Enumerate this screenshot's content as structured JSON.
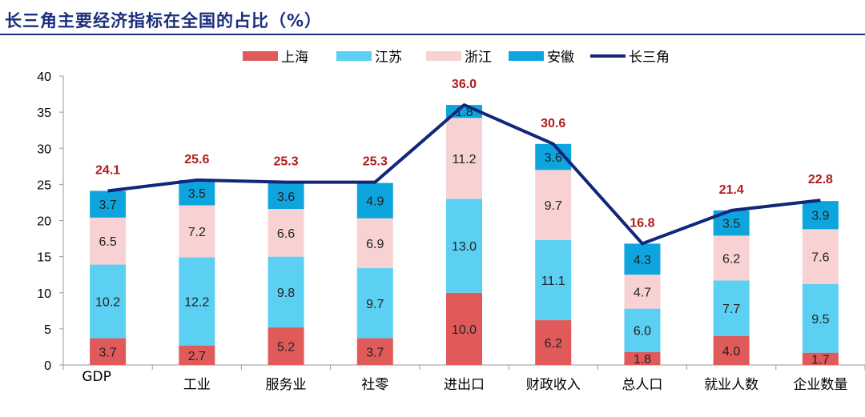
{
  "title": "长三角主要经济指标在全国的占比（%）",
  "chart_data": {
    "type": "bar",
    "stacked": true,
    "categories": [
      "GDP",
      "工业",
      "服务业",
      "社零",
      "进出口",
      "财政收入",
      "总人口",
      "就业人数",
      "企业数量"
    ],
    "series": [
      {
        "name": "上海",
        "color": "#e05a5a",
        "values": [
          3.7,
          2.7,
          5.2,
          3.7,
          10.0,
          6.2,
          1.8,
          4.0,
          1.7
        ]
      },
      {
        "name": "江苏",
        "color": "#5bd0f2",
        "values": [
          10.2,
          12.2,
          9.8,
          9.7,
          13.0,
          11.1,
          6.0,
          7.7,
          9.5
        ]
      },
      {
        "name": "浙江",
        "color": "#f8d2d2",
        "values": [
          6.5,
          7.2,
          6.6,
          6.9,
          11.2,
          9.7,
          4.7,
          6.2,
          7.6
        ]
      },
      {
        "name": "安徽",
        "color": "#0ea5df",
        "values": [
          3.7,
          3.5,
          3.6,
          4.9,
          1.8,
          3.6,
          4.3,
          3.5,
          3.9
        ]
      }
    ],
    "line": {
      "name": "长三角",
      "color": "#12267a",
      "values": [
        24.1,
        25.6,
        25.3,
        25.3,
        36.0,
        30.6,
        16.8,
        21.4,
        22.8
      ]
    },
    "total_labels": [
      "24.1",
      "25.6",
      "25.3",
      "25.3",
      "36.0",
      "30.6",
      "16.8",
      "21.4",
      "22.8"
    ],
    "ylim": [
      0,
      40
    ],
    "yticks": [
      0,
      5,
      10,
      15,
      20,
      25,
      30,
      35,
      40
    ],
    "xlabel": "",
    "ylabel": "",
    "grid": false,
    "legend_position": "top-center"
  }
}
